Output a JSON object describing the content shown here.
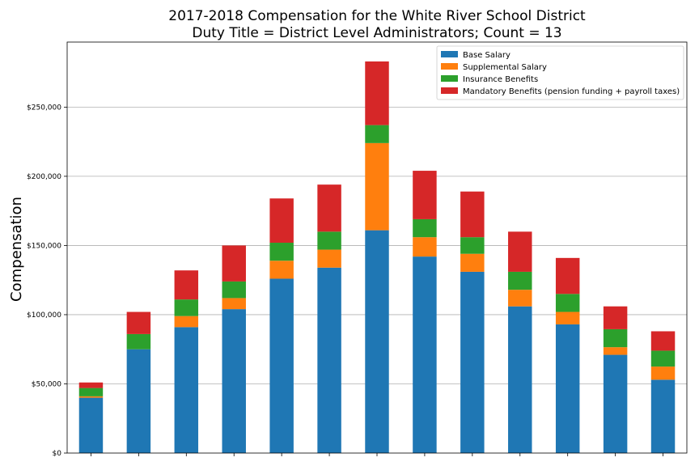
{
  "chart_data": {
    "type": "bar",
    "stacked": true,
    "title": "2017-2018 Compensation for the White River School District",
    "subtitle": "Duty Title = District Level Administrators; Count = 13",
    "xlabel": "",
    "ylabel": "Compensation",
    "ylim": [
      0,
      297000
    ],
    "yticks": [
      0,
      50000,
      100000,
      150000,
      200000,
      250000
    ],
    "ytick_labels": [
      "$0",
      "$50,000",
      "$100,000",
      "$150,000",
      "$200,000",
      "$250,000"
    ],
    "grid": "horizontal",
    "legend_position": "top-right",
    "categories": [
      "",
      "",
      "",
      "",
      "",
      "",
      "",
      "",
      "",
      "",
      "",
      "",
      ""
    ],
    "series": [
      {
        "name": "Base Salary",
        "color": "#1f77b4",
        "values": [
          40000,
          75000,
          91000,
          104000,
          126000,
          134000,
          161000,
          142000,
          131000,
          106000,
          93000,
          71000,
          53000
        ]
      },
      {
        "name": "Supplemental Salary",
        "color": "#ff7f0e",
        "values": [
          1000,
          0,
          8000,
          8000,
          13000,
          13000,
          63000,
          14000,
          13000,
          12000,
          9000,
          5500,
          9500
        ]
      },
      {
        "name": "Insurance Benefits",
        "color": "#2ca02c",
        "values": [
          6000,
          11000,
          12000,
          12000,
          13000,
          13000,
          13000,
          13000,
          12000,
          13000,
          13000,
          13000,
          11500
        ]
      },
      {
        "name": "Mandatory Benefits (pension funding + payroll taxes)",
        "color": "#d62728",
        "values": [
          4000,
          16000,
          21000,
          26000,
          32000,
          34000,
          46000,
          35000,
          33000,
          29000,
          26000,
          16500,
          14000
        ]
      }
    ]
  }
}
